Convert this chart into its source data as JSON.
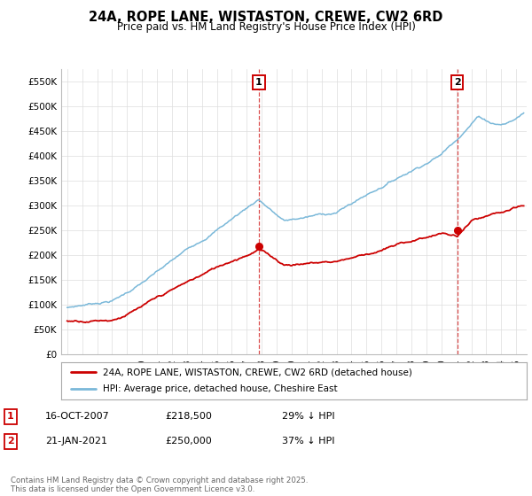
{
  "title": "24A, ROPE LANE, WISTASTON, CREWE, CW2 6RD",
  "subtitle": "Price paid vs. HM Land Registry's House Price Index (HPI)",
  "ylim": [
    0,
    575000
  ],
  "yticks": [
    0,
    50000,
    100000,
    150000,
    200000,
    250000,
    300000,
    350000,
    400000,
    450000,
    500000,
    550000
  ],
  "ytick_labels": [
    "£0",
    "£50K",
    "£100K",
    "£150K",
    "£200K",
    "£250K",
    "£300K",
    "£350K",
    "£400K",
    "£450K",
    "£500K",
    "£550K"
  ],
  "xlim_left": 1994.6,
  "xlim_right": 2025.7,
  "hpi_color": "#7ab8d9",
  "price_color": "#cc0000",
  "marker1_date": 2007.79,
  "marker1_price": 218500,
  "marker2_date": 2021.05,
  "marker2_price": 250000,
  "legend_price_label": "24A, ROPE LANE, WISTASTON, CREWE, CW2 6RD (detached house)",
  "legend_hpi_label": "HPI: Average price, detached house, Cheshire East",
  "ann1_date": "16-OCT-2007",
  "ann1_price": "£218,500",
  "ann1_hpi": "29% ↓ HPI",
  "ann2_date": "21-JAN-2021",
  "ann2_price": "£250,000",
  "ann2_hpi": "37% ↓ HPI",
  "footnote": "Contains HM Land Registry data © Crown copyright and database right 2025.\nThis data is licensed under the Open Government Licence v3.0.",
  "background_color": "#ffffff",
  "grid_color": "#dddddd"
}
